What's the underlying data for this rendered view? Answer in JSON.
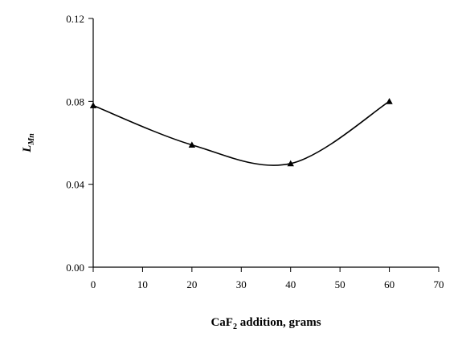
{
  "chart_data": {
    "type": "line",
    "xlabel": "CaF",
    "xlabel_sub": "2",
    "xlabel_rest": " addition, grams",
    "ylabel": "L",
    "ylabel_sub": "Mn",
    "xlim": [
      0,
      70
    ],
    "ylim": [
      0,
      0.12
    ],
    "xticks": [
      "0",
      "10",
      "20",
      "30",
      "40",
      "50",
      "60",
      "70"
    ],
    "yticks": [
      "0.00",
      "0.04",
      "0.08",
      "0.12"
    ],
    "grid": false,
    "series": [
      {
        "x": [
          0,
          20,
          40,
          60
        ],
        "y": [
          0.078,
          0.059,
          0.05,
          0.08
        ],
        "marker": "triangle",
        "color": "#000000",
        "smooth": true
      }
    ]
  }
}
